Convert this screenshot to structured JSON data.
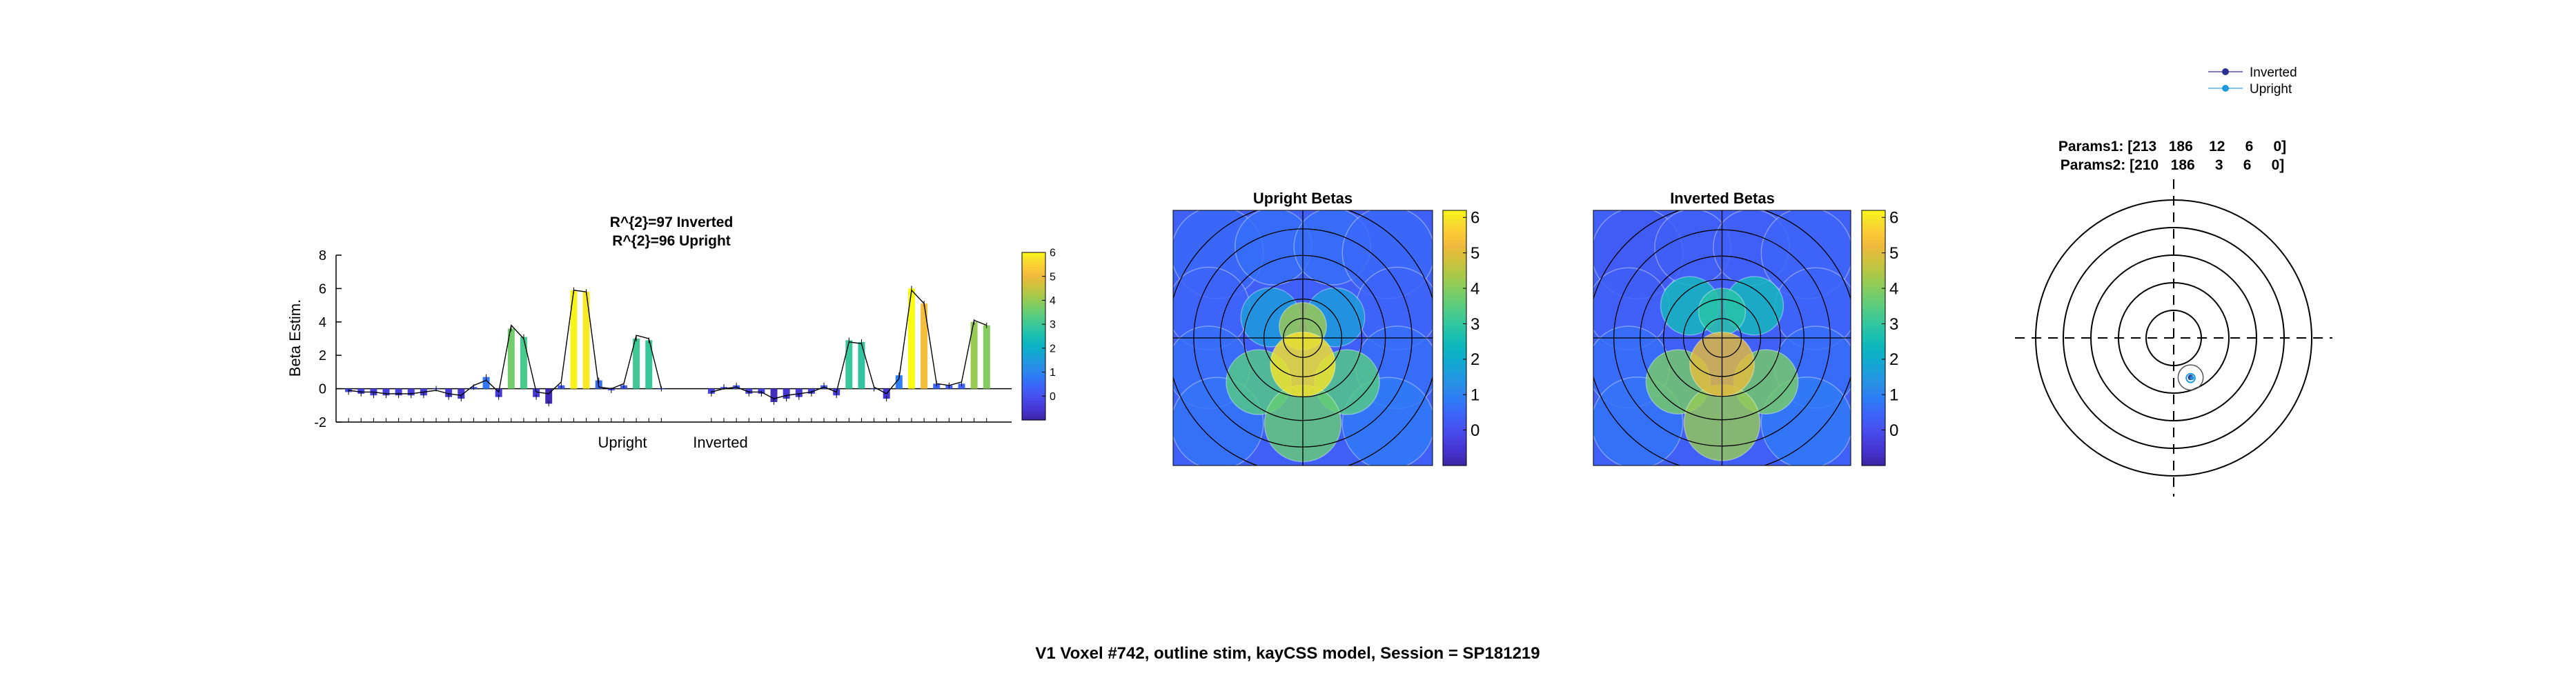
{
  "figure_title": "V1 Voxel #742, outline stim, kayCSS model, Session = SP181219",
  "colors": {
    "parula": [
      "#3e26a8",
      "#4433cf",
      "#4743e2",
      "#4555f0",
      "#3c66f9",
      "#2f7bf6",
      "#2a8be9",
      "#1f9ade",
      "#12a9d0",
      "#0cb5c0",
      "#1bbfb0",
      "#34c69d",
      "#4fcb87",
      "#6dcd6f",
      "#8fcb58",
      "#b1c746",
      "#d2c13d",
      "#edb93c",
      "#fbc838",
      "#f7de2c",
      "#f9fb15"
    ],
    "ring_line": "#000000",
    "upright_marker": "#1f8fdb",
    "inverted_marker": "#2b3a8f"
  },
  "chart_data": [
    {
      "id": "beta-bar-chart",
      "type": "bar",
      "title": [
        "R^{2}=97 Inverted",
        "R^{2}=96 Upright"
      ],
      "xlabel": "",
      "ylabel": "Beta Estim.",
      "ylim": [
        -2,
        8
      ],
      "yticks": [
        -2,
        0,
        2,
        4,
        6,
        8
      ],
      "group_labels": [
        "Upright",
        "Inverted"
      ],
      "grid": false,
      "colorbar": {
        "ticks": [
          0,
          1,
          2,
          3,
          4,
          5,
          6
        ],
        "range": [
          -1,
          6
        ]
      },
      "series": [
        {
          "values": [
            -0.2,
            -0.3,
            -0.4,
            -0.4,
            -0.4,
            -0.4,
            -0.4,
            0,
            -0.5,
            -0.6,
            0.1,
            0.7,
            -0.5,
            3.6,
            3.1,
            -0.5,
            -0.9,
            0.2,
            5.9,
            5.8,
            0.5,
            -0.1,
            0.2,
            3.0,
            2.9,
            0
          ]
        },
        {
          "values": [
            -0.3,
            0.1,
            0.2,
            -0.3,
            -0.3,
            -0.8,
            -0.6,
            -0.5,
            -0.3,
            0.2,
            -0.4,
            2.9,
            2.8,
            0,
            -0.6,
            0.8,
            6.0,
            5.1,
            0.3,
            0.2,
            0.3,
            4.0,
            3.8
          ]
        }
      ],
      "fit_upright": [
        -0.1,
        -0.2,
        -0.2,
        -0.3,
        -0.3,
        -0.3,
        -0.2,
        -0.1,
        -0.3,
        -0.4,
        0.2,
        0.5,
        -0.2,
        3.8,
        3.0,
        -0.2,
        -0.3,
        0.4,
        5.9,
        5.8,
        0.1,
        0.0,
        0.3,
        3.2,
        3.0,
        0
      ],
      "fit_inverted": [
        -0.2,
        0.0,
        0.1,
        -0.2,
        -0.2,
        -0.6,
        -0.4,
        -0.3,
        -0.2,
        0.1,
        -0.2,
        2.8,
        2.7,
        0.1,
        -0.3,
        0.6,
        5.9,
        5.1,
        0.3,
        0.2,
        0.4,
        4.1,
        3.8
      ]
    },
    {
      "id": "upright-betas-map",
      "type": "heatmap",
      "title": "Upright Betas",
      "colorbar": {
        "ticks": [
          0,
          1,
          2,
          3,
          4,
          5,
          6
        ],
        "range": [
          -1,
          6.2
        ]
      },
      "cells": [
        {
          "rx": -1.45,
          "ry": 1.45,
          "r": 0.78,
          "v": 0.5
        },
        {
          "rx": -0.5,
          "ry": 1.55,
          "r": 0.65,
          "v": 0.6
        },
        {
          "rx": 0.5,
          "ry": 1.55,
          "r": 0.65,
          "v": 0.6
        },
        {
          "rx": 1.45,
          "ry": 1.45,
          "r": 0.78,
          "v": 0.5
        },
        {
          "rx": -1.6,
          "ry": 0.5,
          "r": 0.7,
          "v": 0.4
        },
        {
          "rx": 1.6,
          "ry": 0.5,
          "r": 0.7,
          "v": 0.4
        },
        {
          "rx": -1.6,
          "ry": -0.5,
          "r": 0.7,
          "v": 0.6
        },
        {
          "rx": 1.6,
          "ry": -0.5,
          "r": 0.7,
          "v": 0.6
        },
        {
          "rx": -1.45,
          "ry": -1.45,
          "r": 0.78,
          "v": 0.7
        },
        {
          "rx": 1.45,
          "ry": -1.45,
          "r": 0.78,
          "v": 0.8
        },
        {
          "rx": -0.55,
          "ry": 0.35,
          "r": 0.5,
          "v": 1.6
        },
        {
          "rx": 0.55,
          "ry": 0.35,
          "r": 0.5,
          "v": 1.6
        },
        {
          "rx": -0.75,
          "ry": -0.75,
          "r": 0.55,
          "v": 3.4
        },
        {
          "rx": 0.75,
          "ry": -0.75,
          "r": 0.55,
          "v": 3.4
        },
        {
          "rx": 0,
          "ry": -1.45,
          "r": 0.65,
          "v": 3.6
        },
        {
          "rx": 0,
          "ry": 0.2,
          "r": 0.4,
          "v": 4.2
        },
        {
          "rx": 0,
          "ry": -0.45,
          "r": 0.55,
          "v": 5.9
        }
      ],
      "rings": [
        0.33,
        0.66,
        1.0,
        1.4,
        1.85,
        2.3
      ]
    },
    {
      "id": "inverted-betas-map",
      "type": "heatmap",
      "title": "Inverted Betas",
      "colorbar": {
        "ticks": [
          0,
          1,
          2,
          3,
          4,
          5,
          6
        ],
        "range": [
          -1,
          6.2
        ]
      },
      "cells": [
        {
          "rx": -1.45,
          "ry": 1.45,
          "r": 0.78,
          "v": 0.2
        },
        {
          "rx": -0.5,
          "ry": 1.55,
          "r": 0.65,
          "v": 0.3
        },
        {
          "rx": 0.5,
          "ry": 1.55,
          "r": 0.65,
          "v": 0.3
        },
        {
          "rx": 1.45,
          "ry": 1.45,
          "r": 0.78,
          "v": 0.4
        },
        {
          "rx": -1.6,
          "ry": 0.5,
          "r": 0.7,
          "v": 0.3
        },
        {
          "rx": 1.6,
          "ry": 0.5,
          "r": 0.7,
          "v": 0.4
        },
        {
          "rx": -1.6,
          "ry": -0.5,
          "r": 0.7,
          "v": 0.6
        },
        {
          "rx": 1.6,
          "ry": -0.5,
          "r": 0.7,
          "v": 0.6
        },
        {
          "rx": -1.45,
          "ry": -1.45,
          "r": 0.78,
          "v": 0.7
        },
        {
          "rx": 1.45,
          "ry": -1.45,
          "r": 0.78,
          "v": 0.8
        },
        {
          "rx": -0.55,
          "ry": 0.55,
          "r": 0.5,
          "v": 2.4
        },
        {
          "rx": 0.55,
          "ry": 0.55,
          "r": 0.5,
          "v": 2.4
        },
        {
          "rx": -0.75,
          "ry": -0.75,
          "r": 0.55,
          "v": 3.8
        },
        {
          "rx": 0.75,
          "ry": -0.75,
          "r": 0.55,
          "v": 3.8
        },
        {
          "rx": 0,
          "ry": -1.45,
          "r": 0.65,
          "v": 4.1
        },
        {
          "rx": 0,
          "ry": 0.45,
          "r": 0.4,
          "v": 2.8
        },
        {
          "rx": 0,
          "ry": -0.45,
          "r": 0.55,
          "v": 5.0
        }
      ],
      "rings": [
        0.33,
        0.66,
        1.0,
        1.4,
        1.85,
        2.3
      ]
    },
    {
      "id": "prf-params-plot",
      "type": "scatter",
      "title": [
        "Params1: [213   186    12     6     0]",
        "Params2: [210   186     3     6     0]"
      ],
      "legend": {
        "placement": "top-right",
        "entries": [
          "Inverted",
          "Upright"
        ]
      },
      "rings": [
        0.22,
        0.44,
        0.66,
        0.88,
        1.1
      ],
      "points": [
        {
          "series": "Inverted",
          "x": 0.135,
          "y": -0.315,
          "r": 0.1
        },
        {
          "series": "Upright",
          "x": 0.135,
          "y": -0.32,
          "r": 0.035
        }
      ]
    }
  ]
}
